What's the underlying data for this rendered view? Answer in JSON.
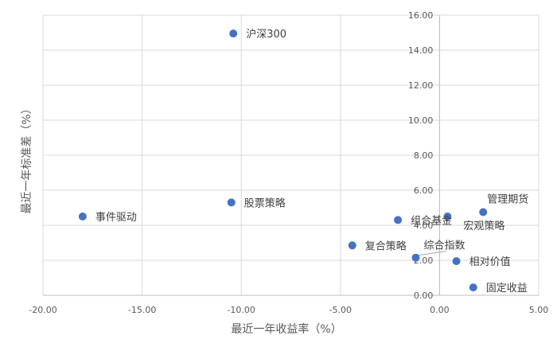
{
  "chart_data": {
    "type": "scatter",
    "xlabel": "最近一年收益率（%）",
    "ylabel": "最近一年标准差（%）",
    "xlim": [
      -20,
      5
    ],
    "ylim": [
      0,
      16
    ],
    "x_ticks": [
      "-20.00",
      "-15.00",
      "-10.00",
      "-5.00",
      "0.00",
      "5.00"
    ],
    "y_ticks": [
      "0.00",
      "2.00",
      "4.00",
      "6.00",
      "8.00",
      "10.00",
      "12.00",
      "14.00",
      "16.00"
    ],
    "grid": true,
    "marker_color": "#4472c4",
    "points": [
      {
        "label": "沪深300",
        "x": -10.4,
        "y": 14.95
      },
      {
        "label": "股票策略",
        "x": -10.5,
        "y": 5.3
      },
      {
        "label": "事件驱动",
        "x": -18.0,
        "y": 4.5
      },
      {
        "label": "组合基金",
        "x": -2.1,
        "y": 4.3
      },
      {
        "label": "宏观策略",
        "x": 0.4,
        "y": 4.5
      },
      {
        "label": "管理期货",
        "x": 2.2,
        "y": 4.75
      },
      {
        "label": "复合策略",
        "x": -4.4,
        "y": 2.85
      },
      {
        "label": "综合指数",
        "x": -1.2,
        "y": 2.15
      },
      {
        "label": "相对价值",
        "x": 0.85,
        "y": 1.95
      },
      {
        "label": "固定收益",
        "x": 1.7,
        "y": 0.45
      }
    ]
  }
}
